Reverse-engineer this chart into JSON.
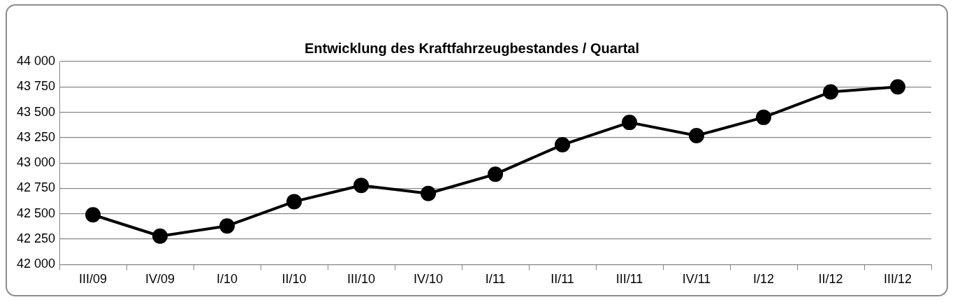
{
  "chart_data": {
    "type": "line",
    "title": "Entwicklung des Kraftfahrzeugbestandes / Quartal",
    "categories": [
      "III/09",
      "IV/09",
      "I/10",
      "II/10",
      "III/10",
      "IV/10",
      "I/11",
      "II/11",
      "III/11",
      "IV/11",
      "I/12",
      "II/12",
      "III/12"
    ],
    "series": [
      {
        "color": "#000000",
        "values": [
          42490,
          42280,
          42380,
          42620,
          42780,
          42700,
          42890,
          43180,
          43400,
          43270,
          43450,
          43700,
          43750
        ]
      }
    ],
    "ylim": [
      42000,
      44000
    ],
    "yticks": [
      {
        "value": 42000,
        "label": "42 000"
      },
      {
        "value": 42250,
        "label": "42 250"
      },
      {
        "value": 42500,
        "label": "42 500"
      },
      {
        "value": 42750,
        "label": "42 750"
      },
      {
        "value": 43000,
        "label": "43 000"
      },
      {
        "value": 43250,
        "label": "43 250"
      },
      {
        "value": 43500,
        "label": "43 500"
      },
      {
        "value": 43750,
        "label": "43 750"
      },
      {
        "value": 44000,
        "label": "44 000"
      }
    ],
    "grid": "y",
    "legend": false,
    "marker": "circle",
    "line_style": "solid"
  }
}
